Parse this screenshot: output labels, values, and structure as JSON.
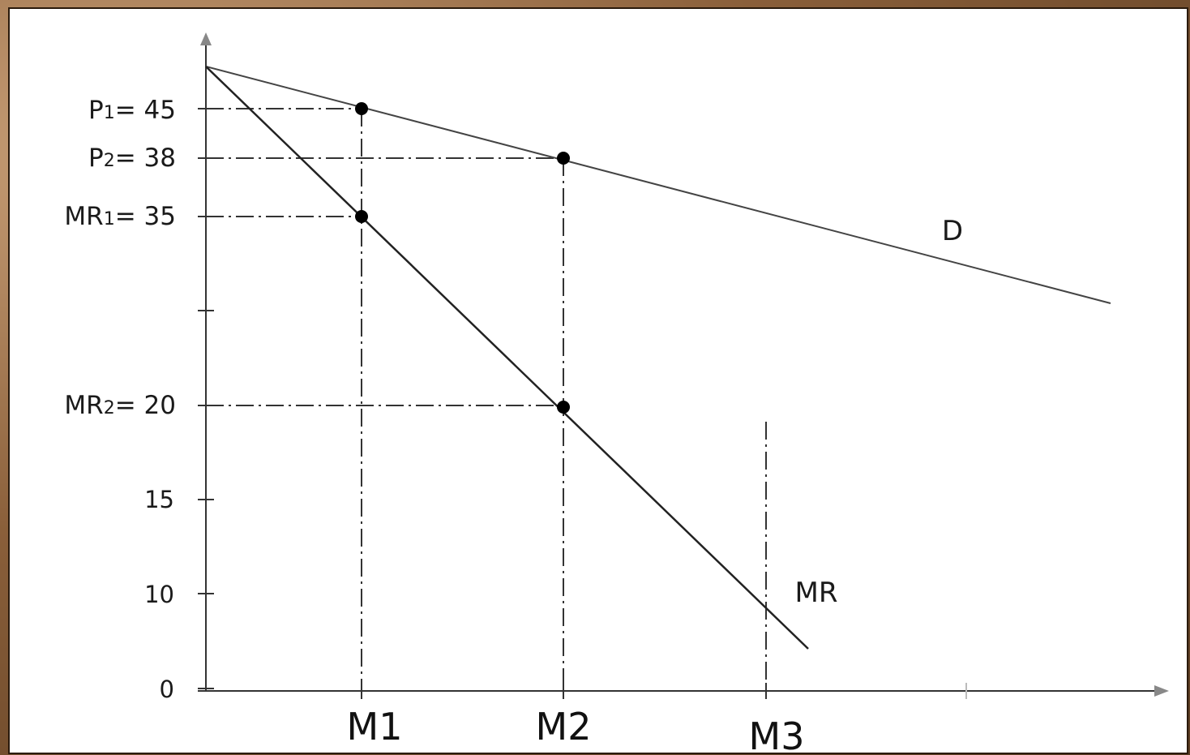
{
  "diagram": {
    "y_axis_labels": {
      "p1": {
        "name": "P",
        "sub": "1",
        "value": "= 45"
      },
      "p2": {
        "name": "P",
        "sub": "2",
        "value": "= 38"
      },
      "mr1": {
        "name": "MR",
        "sub": "1",
        "value": "= 35"
      },
      "mr2": {
        "name": "MR",
        "sub": "2",
        "value": "= 20"
      }
    },
    "y_ticks": [
      "15",
      "10",
      "0"
    ],
    "x_ticks": [
      "M1",
      "M2",
      "M3"
    ],
    "curves": {
      "demand": "D",
      "marginal_revenue": "MR"
    },
    "colors": {
      "background": "#ffffff",
      "line": "#1a1a1a",
      "frame": "#8a5f3a"
    }
  }
}
